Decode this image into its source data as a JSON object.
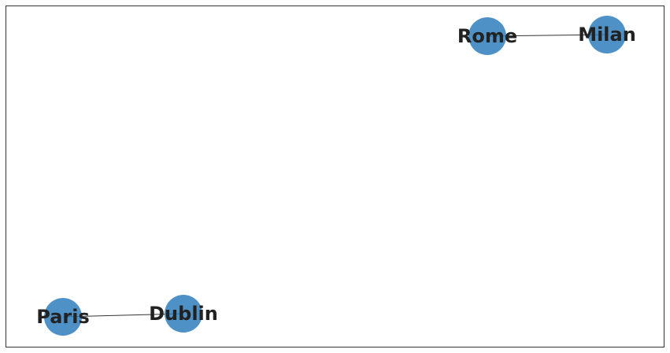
{
  "graph": {
    "node_color": "#2f7ebc",
    "edge_color": "#333333",
    "label_color": "#222222",
    "frame_color": "#333333",
    "nodes": [
      {
        "id": "rome",
        "label": "Rome"
      },
      {
        "id": "milan",
        "label": "Milan"
      },
      {
        "id": "paris",
        "label": "Paris"
      },
      {
        "id": "dublin",
        "label": "Dublin"
      }
    ],
    "edges": [
      {
        "source": "rome",
        "target": "milan"
      },
      {
        "source": "paris",
        "target": "dublin"
      }
    ]
  }
}
